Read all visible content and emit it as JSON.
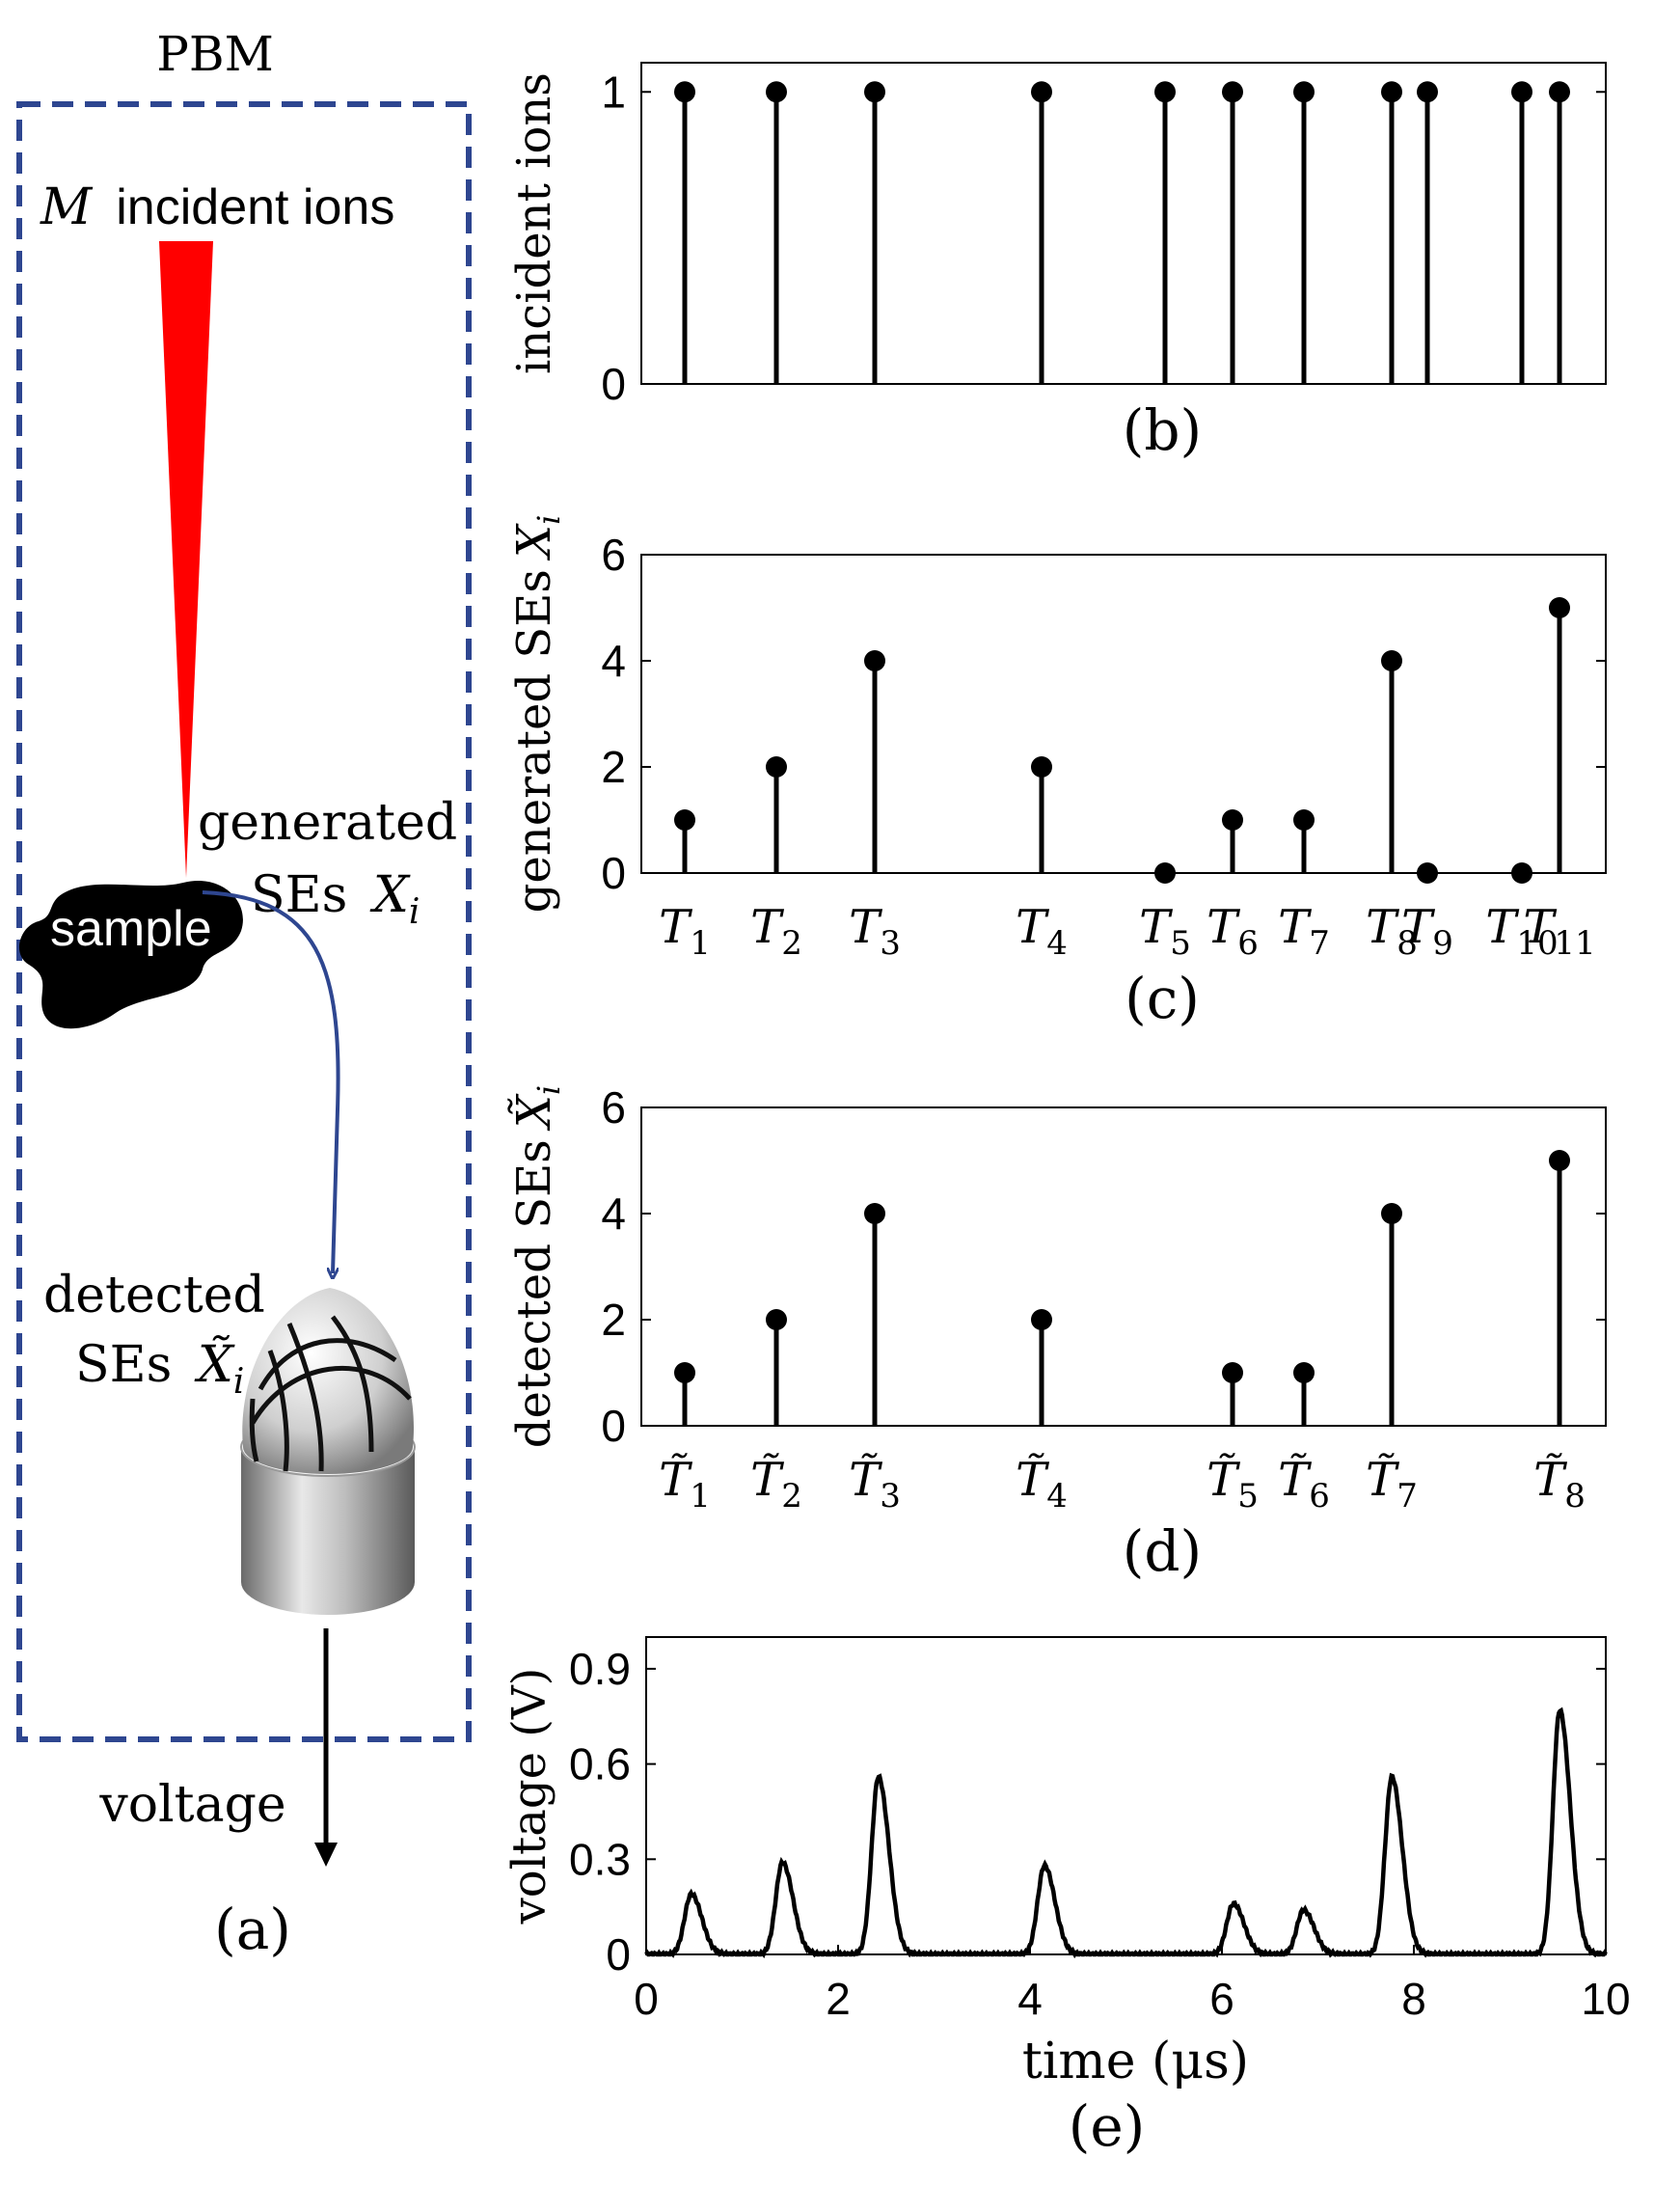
{
  "left_panel": {
    "box_label": "PBM",
    "ion_label_var": "M",
    "ion_label_rest": "incident ions",
    "generated_label_line1": "generated",
    "generated_label_line2": "SEs",
    "generated_var": "X",
    "generated_sub": "i",
    "sample_label": "sample",
    "detected_label_line1": "detected",
    "detected_label_line2": "SEs",
    "detected_var": "X̃",
    "detected_sub": "i",
    "voltage_label": "voltage",
    "panel_label": "(a)",
    "colors": {
      "box": "#2e4690",
      "beam": "#ff0000",
      "arrow": "#2e4690",
      "sample": "#000000"
    }
  },
  "chart_data": [
    {
      "id": "b",
      "type": "stem",
      "panel_label": "(b)",
      "ylabel": "incident ions",
      "xlim": [
        0,
        10
      ],
      "ylim": [
        0,
        1.1
      ],
      "yticks": [
        0,
        1
      ],
      "x": [
        0.45,
        1.4,
        2.42,
        4.15,
        5.43,
        6.13,
        6.87,
        7.78,
        8.15,
        9.13,
        9.52
      ],
      "values": [
        1,
        1,
        1,
        1,
        1,
        1,
        1,
        1,
        1,
        1,
        1
      ]
    },
    {
      "id": "c",
      "type": "stem",
      "panel_label": "(c)",
      "ylabel": "generated SEs",
      "ylabel_var": "X",
      "ylabel_sub": "i",
      "xlim": [
        0,
        10
      ],
      "ylim": [
        0,
        6
      ],
      "yticks": [
        0,
        2,
        4,
        6
      ],
      "x": [
        0.45,
        1.4,
        2.42,
        4.15,
        5.43,
        6.13,
        6.87,
        7.78,
        8.15,
        9.13,
        9.52
      ],
      "values": [
        1,
        2,
        4,
        2,
        0,
        1,
        1,
        4,
        0,
        0,
        5
      ],
      "tick_labels": [
        {
          "base": "T",
          "sub": "1"
        },
        {
          "base": "T",
          "sub": "2"
        },
        {
          "base": "T",
          "sub": "3"
        },
        {
          "base": "T",
          "sub": "4"
        },
        {
          "base": "T",
          "sub": "5"
        },
        {
          "base": "T",
          "sub": "6"
        },
        {
          "base": "T",
          "sub": "7"
        },
        {
          "base": "T",
          "sub": "8"
        },
        {
          "base": "T",
          "sub": "9"
        },
        {
          "base": "T",
          "sub": "10"
        },
        {
          "base": "T",
          "sub": "11"
        }
      ]
    },
    {
      "id": "d",
      "type": "stem",
      "panel_label": "(d)",
      "ylabel": "detected SEs",
      "ylabel_var": "X̃",
      "ylabel_sub": "i",
      "xlim": [
        0,
        10
      ],
      "ylim": [
        0,
        6
      ],
      "yticks": [
        0,
        2,
        4,
        6
      ],
      "x": [
        0.45,
        1.4,
        2.42,
        4.15,
        6.13,
        6.87,
        7.78,
        9.52
      ],
      "values": [
        1,
        2,
        4,
        2,
        1,
        1,
        4,
        5
      ],
      "tick_labels": [
        {
          "base": "T̃",
          "sub": "1"
        },
        {
          "base": "T̃",
          "sub": "2"
        },
        {
          "base": "T̃",
          "sub": "3"
        },
        {
          "base": "T̃",
          "sub": "4"
        },
        {
          "base": "T̃",
          "sub": "5"
        },
        {
          "base": "T̃",
          "sub": "6"
        },
        {
          "base": "T̃",
          "sub": "7"
        },
        {
          "base": "T̃",
          "sub": "8"
        }
      ]
    },
    {
      "id": "e",
      "type": "line",
      "panel_label": "(e)",
      "ylabel": "voltage (V)",
      "xlabel": "time (μs)",
      "xlim": [
        0,
        10
      ],
      "ylim": [
        0,
        1.0
      ],
      "xticks": [
        0,
        2,
        4,
        6,
        8,
        10
      ],
      "yticks": [
        0,
        0.3,
        0.6,
        0.9
      ],
      "ytick_labels": [
        "0",
        "0.3",
        "0.6",
        "0.9"
      ],
      "peaks": [
        {
          "t": 0.47,
          "v": 0.19
        },
        {
          "t": 1.42,
          "v": 0.29
        },
        {
          "t": 2.42,
          "v": 0.56
        },
        {
          "t": 4.15,
          "v": 0.28
        },
        {
          "t": 6.12,
          "v": 0.16
        },
        {
          "t": 6.85,
          "v": 0.14
        },
        {
          "t": 7.77,
          "v": 0.56
        },
        {
          "t": 9.52,
          "v": 0.77
        }
      ]
    }
  ]
}
